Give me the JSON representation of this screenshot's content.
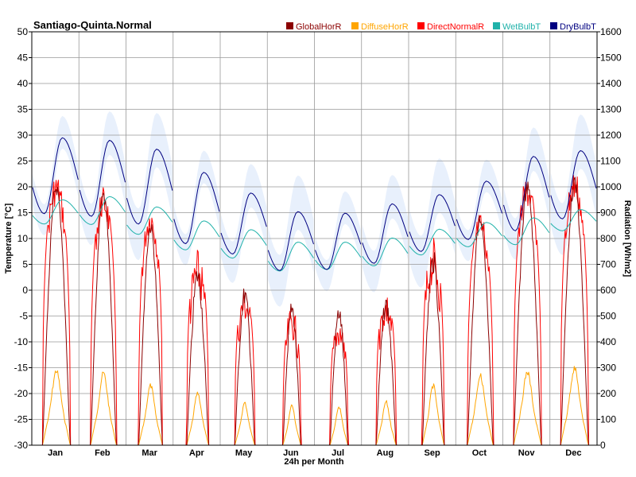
{
  "chart_data": {
    "type": "line",
    "title": "Santiago-Quinta.Normal",
    "xlabel": "24h per Month",
    "ylabel": "Temperature [°C]",
    "ylabel_right": "Radiation [Wh/m2]",
    "ylim": [
      -30,
      50
    ],
    "ylim_right": [
      0,
      1600
    ],
    "y_ticks": [
      "50",
      "45",
      "40",
      "35",
      "30",
      "25",
      "20",
      "15",
      "10",
      "5",
      "0",
      "-5",
      "-10",
      "-15",
      "-20",
      "-25",
      "-30"
    ],
    "y_ticks_right": [
      "1600",
      "1500",
      "1400",
      "1300",
      "1200",
      "1100",
      "1000",
      "900",
      "800",
      "700",
      "600",
      "500",
      "400",
      "300",
      "200",
      "100",
      "0"
    ],
    "months": [
      "Jan",
      "Feb",
      "Mar",
      "Apr",
      "May",
      "Jun",
      "Jul",
      "Aug",
      "Sep",
      "Oct",
      "Nov",
      "Dec"
    ],
    "legend": [
      {
        "name": "GlobalHorR",
        "color": "#8b0000"
      },
      {
        "name": "DiffuseHorR",
        "color": "#ffa500"
      },
      {
        "name": "DirectNormalR",
        "color": "#ff0000"
      },
      {
        "name": "WetBulbT",
        "color": "#20b2aa"
      },
      {
        "name": "DryBulbT",
        "color": "#000080"
      }
    ],
    "band_color": "#e8f0fc",
    "series": [
      {
        "name": "DryBulbT",
        "unit": "°C",
        "monthly_min": [
          14.8,
          14.3,
          12.8,
          9.0,
          7.0,
          3.8,
          4.0,
          5.2,
          7.5,
          9.8,
          11.5,
          13.8
        ],
        "monthly_max": [
          29.5,
          29.0,
          27.3,
          22.8,
          18.8,
          15.2,
          14.9,
          16.7,
          18.5,
          21.1,
          25.9,
          27.0
        ]
      },
      {
        "name": "WetBulbT",
        "unit": "°C",
        "monthly_min": [
          12.8,
          12.7,
          10.8,
          7.8,
          6.2,
          3.7,
          4.0,
          4.7,
          6.8,
          8.4,
          8.8,
          11.5
        ],
        "monthly_max": [
          17.5,
          18.1,
          16.1,
          13.4,
          11.7,
          9.3,
          9.3,
          10.1,
          11.8,
          13.1,
          14.0,
          15.6
        ]
      },
      {
        "name": "GlobalHorR",
        "unit": "Wh/m2",
        "monthly_peak": [
          1030,
          990,
          870,
          700,
          620,
          560,
          545,
          580,
          760,
          905,
          1025,
          1040
        ]
      },
      {
        "name": "DirectNormalR",
        "unit": "Wh/m2",
        "monthly_peak": [
          1055,
          1000,
          930,
          760,
          620,
          540,
          500,
          600,
          805,
          900,
          1040,
          1070
        ]
      },
      {
        "name": "DiffuseHorR",
        "unit": "Wh/m2",
        "monthly_peak": [
          300,
          290,
          240,
          210,
          170,
          160,
          155,
          175,
          240,
          280,
          295,
          310
        ]
      }
    ]
  }
}
